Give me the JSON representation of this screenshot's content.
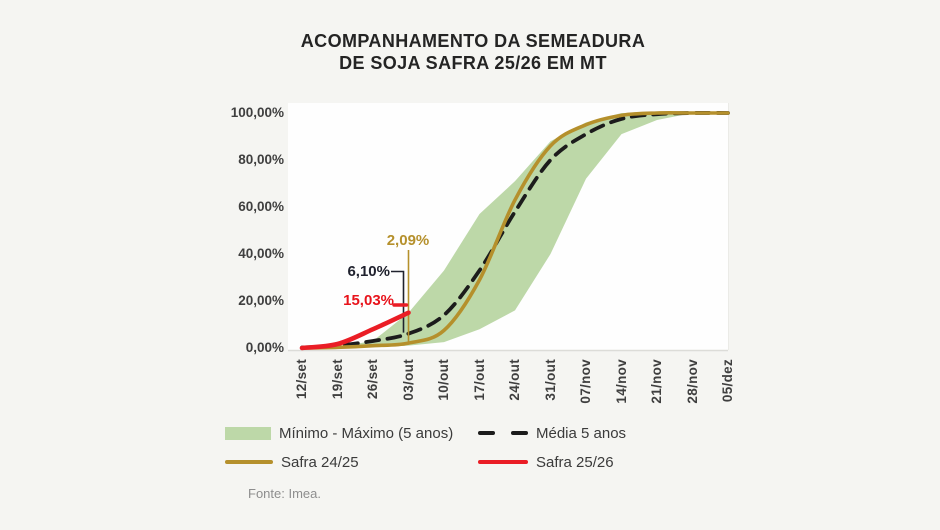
{
  "page": {
    "background": "#f5f5f2",
    "plot_background": "#fefefe"
  },
  "title": {
    "line1": "ACOMPANHAMENTO DA SEMEADURA",
    "line2": "DE SOJA SAFRA 25/26 EM MT"
  },
  "chart_data": {
    "type": "area",
    "subtype": "range-band with lines (seeding progress, % area planted)",
    "categories": [
      "12/set",
      "19/set",
      "26/set",
      "03/out",
      "10/out",
      "17/out",
      "24/out",
      "31/out",
      "07/nov",
      "14/nov",
      "21/nov",
      "28/nov",
      "05/dez"
    ],
    "y_ticks": [
      {
        "label": "100,00%",
        "value": 100
      },
      {
        "label": "80,00%",
        "value": 80
      },
      {
        "label": "60,00%",
        "value": 60
      },
      {
        "label": "40,00%",
        "value": 40
      },
      {
        "label": "20,00%",
        "value": 20
      },
      {
        "label": "0,00%",
        "value": 0
      }
    ],
    "ylim": [
      0,
      100
    ],
    "grid": false,
    "legend_position": "bottom",
    "series": [
      {
        "name": "Mínimo - Máximo (5 anos)",
        "type": "band",
        "color": "#bdd8a8",
        "min": [
          0,
          0,
          0.3,
          1,
          2.5,
          8,
          16,
          40,
          72,
          91,
          97,
          100,
          100
        ],
        "max": [
          0,
          0.5,
          3,
          15,
          33,
          57,
          71,
          88,
          96,
          100,
          100,
          100,
          100
        ]
      },
      {
        "name": "Média 5 anos",
        "type": "dashed-line",
        "color": "#1c1c1c",
        "values": [
          0.2,
          1,
          3,
          6.1,
          14,
          33,
          58,
          80,
          91,
          97.5,
          99.5,
          100,
          100
        ]
      },
      {
        "name": "Safra 24/25",
        "type": "line",
        "color": "#b5902c",
        "values": [
          0,
          0.3,
          1,
          2.09,
          7.5,
          29,
          63,
          86,
          95,
          99,
          100,
          100,
          100
        ]
      },
      {
        "name": "Safra 25/26",
        "type": "line",
        "color": "#ea1d25",
        "values": [
          0,
          1.7,
          8,
          15.03
        ]
      }
    ],
    "annotations": [
      {
        "target": "Safra 24/25",
        "at": "03/out",
        "value": 2.09,
        "label": "2,09%",
        "color": "#b5902c"
      },
      {
        "target": "Média 5 anos",
        "at": "03/out",
        "value": 6.1,
        "label": "6,10%",
        "color": "#20222e"
      },
      {
        "target": "Safra 25/26",
        "at": "03/out",
        "value": 15.03,
        "label": "15,03%",
        "color": "#e8131b"
      }
    ]
  },
  "footer": {
    "source": "Fonte: Imea."
  }
}
